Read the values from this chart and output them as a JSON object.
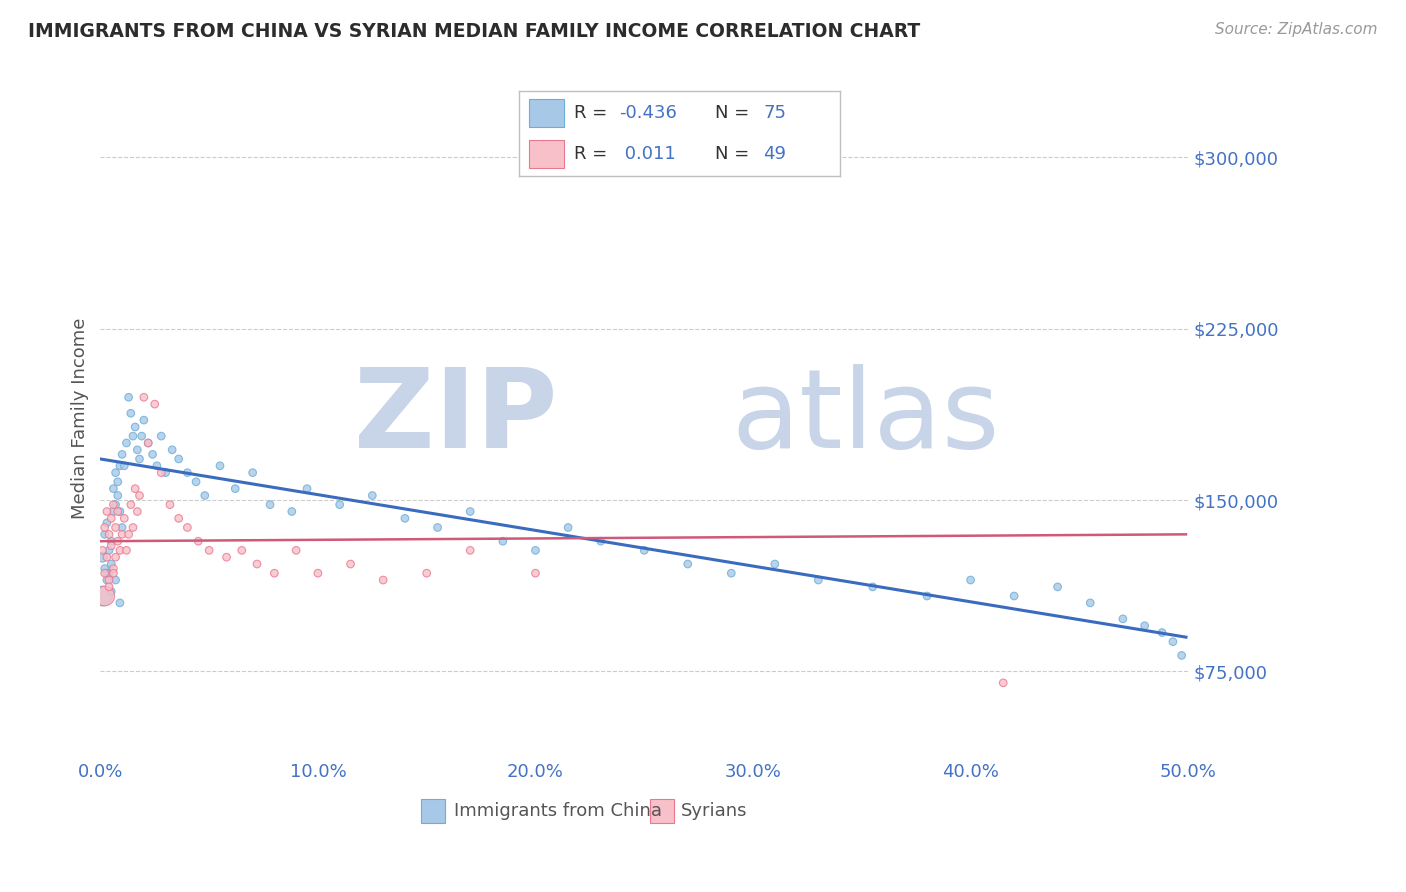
{
  "title": "IMMIGRANTS FROM CHINA VS SYRIAN MEDIAN FAMILY INCOME CORRELATION CHART",
  "source": "Source: ZipAtlas.com",
  "ylabel": "Median Family Income",
  "xlim": [
    0.0,
    0.5
  ],
  "ylim": [
    37000,
    335000
  ],
  "yticks": [
    75000,
    150000,
    225000,
    300000
  ],
  "ytick_labels": [
    "$75,000",
    "$150,000",
    "$225,000",
    "$300,000"
  ],
  "xticks": [
    0.0,
    0.1,
    0.2,
    0.3,
    0.4,
    0.5
  ],
  "xtick_labels": [
    "0.0%",
    "10.0%",
    "20.0%",
    "30.0%",
    "40.0%",
    "50.0%"
  ],
  "china_R": -0.436,
  "china_N": 75,
  "syria_R": 0.011,
  "syria_N": 49,
  "china_color": "#a8c8e8",
  "china_edge_color": "#6baed6",
  "china_line_color": "#3a6bbf",
  "syria_color": "#f8c0c8",
  "syria_edge_color": "#e87890",
  "syria_line_color": "#d05878",
  "background_color": "#ffffff",
  "grid_color": "#cccccc",
  "title_color": "#2c2c2c",
  "axis_label_color": "#555555",
  "tick_color": "#4472c4",
  "watermark_zip_color": "#c8d4e8",
  "watermark_atlas_color": "#c8d4e8",
  "legend_R_color": "#4472c4",
  "china_scatter_x": [
    0.001,
    0.002,
    0.002,
    0.003,
    0.003,
    0.004,
    0.004,
    0.005,
    0.005,
    0.006,
    0.006,
    0.007,
    0.007,
    0.008,
    0.008,
    0.009,
    0.009,
    0.01,
    0.01,
    0.011,
    0.012,
    0.013,
    0.014,
    0.015,
    0.016,
    0.017,
    0.018,
    0.019,
    0.02,
    0.022,
    0.024,
    0.026,
    0.028,
    0.03,
    0.033,
    0.036,
    0.04,
    0.044,
    0.048,
    0.055,
    0.062,
    0.07,
    0.078,
    0.088,
    0.095,
    0.11,
    0.125,
    0.14,
    0.155,
    0.17,
    0.185,
    0.2,
    0.215,
    0.23,
    0.25,
    0.27,
    0.29,
    0.31,
    0.33,
    0.355,
    0.38,
    0.4,
    0.42,
    0.44,
    0.455,
    0.47,
    0.48,
    0.488,
    0.493,
    0.497,
    0.001,
    0.003,
    0.005,
    0.007,
    0.009
  ],
  "china_scatter_y": [
    125000,
    120000,
    135000,
    115000,
    140000,
    128000,
    118000,
    132000,
    122000,
    145000,
    155000,
    148000,
    162000,
    158000,
    152000,
    165000,
    145000,
    170000,
    138000,
    165000,
    175000,
    195000,
    188000,
    178000,
    182000,
    172000,
    168000,
    178000,
    185000,
    175000,
    170000,
    165000,
    178000,
    162000,
    172000,
    168000,
    162000,
    158000,
    152000,
    165000,
    155000,
    162000,
    148000,
    145000,
    155000,
    148000,
    152000,
    142000,
    138000,
    145000,
    132000,
    128000,
    138000,
    132000,
    128000,
    122000,
    118000,
    122000,
    115000,
    112000,
    108000,
    115000,
    108000,
    112000,
    105000,
    98000,
    95000,
    92000,
    88000,
    82000,
    108000,
    118000,
    110000,
    115000,
    105000
  ],
  "china_scatter_size": [
    50,
    30,
    30,
    30,
    30,
    30,
    30,
    30,
    30,
    30,
    30,
    30,
    30,
    30,
    30,
    30,
    30,
    30,
    30,
    30,
    30,
    30,
    30,
    30,
    30,
    30,
    30,
    30,
    30,
    30,
    30,
    30,
    30,
    30,
    30,
    30,
    30,
    30,
    30,
    30,
    30,
    30,
    30,
    30,
    30,
    30,
    30,
    30,
    30,
    30,
    30,
    30,
    30,
    30,
    30,
    30,
    30,
    30,
    30,
    30,
    30,
    30,
    30,
    30,
    30,
    30,
    30,
    30,
    30,
    30,
    200,
    30,
    30,
    30,
    30
  ],
  "syria_scatter_x": [
    0.001,
    0.002,
    0.002,
    0.003,
    0.003,
    0.004,
    0.004,
    0.005,
    0.005,
    0.006,
    0.006,
    0.007,
    0.007,
    0.008,
    0.008,
    0.009,
    0.01,
    0.011,
    0.012,
    0.013,
    0.014,
    0.015,
    0.016,
    0.017,
    0.018,
    0.02,
    0.022,
    0.025,
    0.028,
    0.032,
    0.036,
    0.04,
    0.045,
    0.05,
    0.058,
    0.065,
    0.072,
    0.08,
    0.09,
    0.1,
    0.115,
    0.13,
    0.15,
    0.17,
    0.2,
    0.002,
    0.004,
    0.006,
    0.415
  ],
  "syria_scatter_y": [
    128000,
    118000,
    138000,
    125000,
    145000,
    115000,
    135000,
    130000,
    142000,
    120000,
    148000,
    125000,
    138000,
    132000,
    145000,
    128000,
    135000,
    142000,
    128000,
    135000,
    148000,
    138000,
    155000,
    145000,
    152000,
    195000,
    175000,
    192000,
    162000,
    148000,
    142000,
    138000,
    132000,
    128000,
    125000,
    128000,
    122000,
    118000,
    128000,
    118000,
    122000,
    115000,
    118000,
    128000,
    118000,
    108000,
    112000,
    118000,
    70000
  ],
  "syria_scatter_size": [
    30,
    30,
    30,
    30,
    30,
    30,
    30,
    30,
    30,
    30,
    30,
    30,
    30,
    30,
    30,
    30,
    30,
    30,
    30,
    30,
    30,
    30,
    30,
    30,
    30,
    30,
    30,
    30,
    30,
    30,
    30,
    30,
    30,
    30,
    30,
    30,
    30,
    30,
    30,
    30,
    30,
    30,
    30,
    30,
    30,
    200,
    30,
    30,
    30
  ],
  "china_trendline_x": [
    0.0,
    0.499
  ],
  "china_trendline_y": [
    168000,
    90000
  ],
  "syria_trendline_x": [
    0.0,
    0.499
  ],
  "syria_trendline_y": [
    132000,
    135000
  ]
}
